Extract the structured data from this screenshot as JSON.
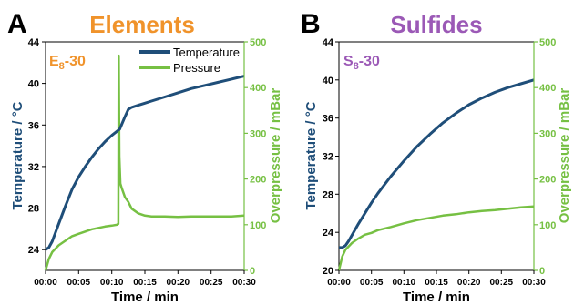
{
  "colors": {
    "temperature": "#1f4e79",
    "pressure": "#76c043",
    "title_elements": "#f0932b",
    "title_sulfides": "#9b59b6"
  },
  "chart_data": [
    {
      "type": "line",
      "panel_letter": "A",
      "title": "Elements",
      "sample_label": "E8-30",
      "sample_label_main": "E",
      "sample_label_sub": "8",
      "sample_label_suffix": "-30",
      "xlabel": "Time / min",
      "ylabel_left": "Temperature / °C",
      "ylabel_right": "Overpressure / mBar",
      "x_ticks": [
        "00:00",
        "00:05",
        "00:10",
        "00:15",
        "00:20",
        "00:25",
        "00:30"
      ],
      "xlim": [
        0,
        30
      ],
      "y_left_ticks": [
        "24",
        "28",
        "32",
        "36",
        "40",
        "44"
      ],
      "y_left_lim": [
        22,
        44
      ],
      "y_right_ticks": [
        "0",
        "100",
        "200",
        "300",
        "400",
        "500"
      ],
      "y_right_lim": [
        0,
        500
      ],
      "legend": [
        "Temperature",
        "Pressure"
      ],
      "legend_position": "top-right",
      "series": [
        {
          "name": "Temperature",
          "axis": "left",
          "x": [
            0,
            0.5,
            1,
            2,
            3,
            4,
            5,
            6,
            7,
            8,
            9,
            10,
            11,
            11.2,
            12,
            12.5,
            13,
            14,
            15,
            16,
            18,
            20,
            22,
            24,
            26,
            28,
            30
          ],
          "values": [
            24.0,
            24.2,
            24.8,
            26.5,
            28.2,
            29.8,
            31.0,
            32.0,
            32.9,
            33.7,
            34.4,
            35.0,
            35.5,
            35.6,
            36.8,
            37.5,
            37.7,
            37.9,
            38.1,
            38.3,
            38.7,
            39.1,
            39.5,
            39.8,
            40.1,
            40.4,
            40.7
          ]
        },
        {
          "name": "Pressure",
          "axis": "right",
          "x": [
            0,
            0.5,
            1,
            2,
            3,
            4,
            5,
            6,
            7,
            8,
            9,
            10,
            10.8,
            11.0,
            11.05,
            11.15,
            11.3,
            11.5,
            12,
            12.5,
            13,
            14,
            15,
            16,
            18,
            20,
            22,
            24,
            26,
            28,
            30
          ],
          "values": [
            0,
            25,
            40,
            55,
            65,
            75,
            80,
            85,
            90,
            93,
            96,
            98,
            100,
            102,
            470,
            250,
            190,
            180,
            160,
            150,
            135,
            125,
            120,
            118,
            118,
            117,
            118,
            118,
            118,
            118,
            120
          ]
        }
      ]
    },
    {
      "type": "line",
      "panel_letter": "B",
      "title": "Sulfides",
      "sample_label": "S8-30",
      "sample_label_main": "S",
      "sample_label_sub": "8",
      "sample_label_suffix": "-30",
      "xlabel": "Time / min",
      "ylabel_left": "Temperature / °C",
      "ylabel_right": "Overpressure / mBar",
      "x_ticks": [
        "00:00",
        "00:05",
        "00:10",
        "00:15",
        "00:20",
        "00:25",
        "00:30"
      ],
      "xlim": [
        0,
        30
      ],
      "y_left_ticks": [
        "20",
        "24",
        "28",
        "32",
        "36",
        "40",
        "44"
      ],
      "y_left_lim": [
        20,
        44
      ],
      "y_right_ticks": [
        "0",
        "100",
        "200",
        "300",
        "400",
        "500"
      ],
      "y_right_lim": [
        0,
        500
      ],
      "series": [
        {
          "name": "Temperature",
          "axis": "left",
          "x": [
            0,
            0.5,
            1,
            1.5,
            2,
            3,
            4,
            5,
            6,
            8,
            10,
            12,
            14,
            16,
            18,
            20,
            22,
            24,
            26,
            28,
            30
          ],
          "values": [
            22.4,
            22.4,
            22.6,
            23.1,
            23.7,
            24.9,
            26.0,
            27.1,
            28.1,
            29.9,
            31.5,
            33.0,
            34.3,
            35.5,
            36.5,
            37.4,
            38.1,
            38.7,
            39.2,
            39.6,
            40.0
          ]
        },
        {
          "name": "Pressure",
          "axis": "right",
          "x": [
            0,
            0.5,
            1,
            2,
            3,
            4,
            5,
            6,
            8,
            10,
            12,
            14,
            16,
            18,
            20,
            22,
            24,
            26,
            28,
            30
          ],
          "values": [
            0,
            30,
            45,
            60,
            70,
            78,
            82,
            88,
            95,
            103,
            110,
            115,
            120,
            123,
            127,
            130,
            132,
            135,
            138,
            140
          ]
        }
      ]
    }
  ]
}
